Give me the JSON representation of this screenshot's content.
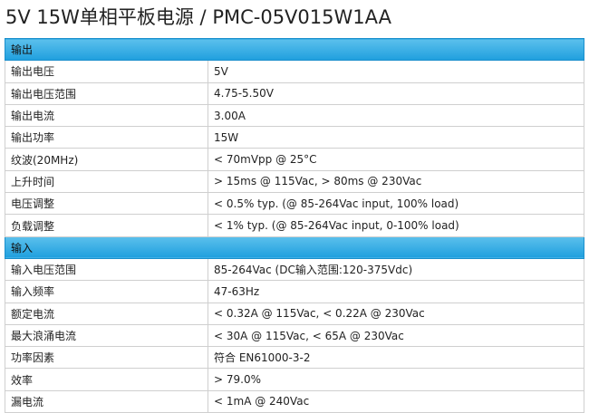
{
  "title": "5V 15W单相平板电源 / PMC-05V015W1AA",
  "sections": [
    {
      "title": "输出",
      "rows": [
        [
          "输出电压",
          "5V"
        ],
        [
          "输出电压范围",
          "4.75-5.50V"
        ],
        [
          "输出电流",
          "3.00A"
        ],
        [
          "输出功率",
          "15W"
        ],
        [
          "纹波(20MHz)",
          "< 70mVpp @ 25°C"
        ],
        [
          "上升时间",
          "> 15ms @ 115Vac, > 80ms @ 230Vac"
        ],
        [
          "电压调整",
          "< 0.5% typ. (@ 85-264Vac input, 100% load)"
        ],
        [
          "负载调整",
          "< 1% typ. (@ 85-264Vac input, 0-100% load)"
        ]
      ]
    },
    {
      "title": "输入",
      "rows": [
        [
          "输入电压范围",
          "85-264Vac (DC输入范围:120-375Vdc)"
        ],
        [
          "输入频率",
          "47-63Hz"
        ],
        [
          "额定电流",
          "< 0.32A @ 115Vac, < 0.22A @ 230Vac"
        ],
        [
          "最大浪涌电流",
          "< 30A @ 115Vac, < 65A @ 230Vac"
        ],
        [
          "功率因素",
          "符合 EN61000-3-2"
        ],
        [
          "效率",
          "> 79.0%"
        ],
        [
          "漏电流",
          "< 1mA @ 240Vac"
        ]
      ]
    }
  ]
}
